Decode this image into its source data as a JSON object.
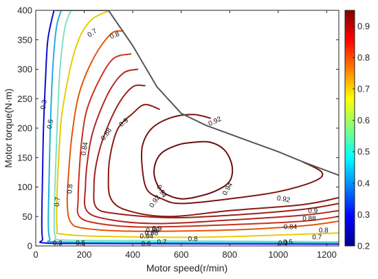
{
  "chart_data": {
    "type": "contour",
    "xlabel": "Motor speed(r/min)",
    "ylabel": "Motor torque(N·m)",
    "xlim": [
      0,
      1250
    ],
    "ylim": [
      0,
      400
    ],
    "x_ticks": [
      "0",
      "200",
      "400",
      "600",
      "800",
      "1000",
      "1200"
    ],
    "y_ticks": [
      "0",
      "50",
      "100",
      "150",
      "200",
      "250",
      "300",
      "350",
      "400"
    ],
    "colorbar": {
      "range": [
        0.2,
        0.95
      ],
      "ticks": [
        "0.2",
        "0.3",
        "0.4",
        "0.5",
        "0.6",
        "0.7",
        "0.8",
        "0.9"
      ],
      "colors": [
        "#00008f",
        "#0000ff",
        "#0080ff",
        "#00ffff",
        "#80ff80",
        "#ffff00",
        "#ff8000",
        "#ff0000",
        "#800000"
      ]
    },
    "grid": false,
    "boundary": {
      "name": "max torque envelope",
      "color": "#555555",
      "points": [
        [
          80,
          400
        ],
        [
          300,
          400
        ],
        [
          400,
          340
        ],
        [
          500,
          270
        ],
        [
          600,
          225
        ],
        [
          700,
          205
        ],
        [
          800,
          190
        ],
        [
          900,
          175
        ],
        [
          1000,
          160
        ],
        [
          1100,
          143
        ],
        [
          1250,
          120
        ]
      ]
    },
    "levels": [
      {
        "level": 0.3,
        "color": "#0a0ad2",
        "points": [
          [
            75,
            400
          ],
          [
            50,
            350
          ],
          [
            40,
            280
          ],
          [
            32,
            200
          ],
          [
            28,
            120
          ],
          [
            25,
            40
          ],
          [
            28,
            12
          ],
          [
            40,
            5
          ],
          [
            300,
            4
          ],
          [
            1250,
            3
          ]
        ],
        "labels": [
          {
            "text": "0.3",
            "x": 32,
            "y": 240,
            "angle": -80
          },
          {
            "text": "0.3",
            "x": 90,
            "y": 5,
            "angle": 0
          },
          {
            "text": "0.3",
            "x": 1020,
            "y": 5,
            "angle": 0
          }
        ]
      },
      {
        "level": 0.5,
        "color": "#1faee0",
        "points": [
          [
            105,
            400
          ],
          [
            85,
            370
          ],
          [
            70,
            300
          ],
          [
            60,
            200
          ],
          [
            55,
            110
          ],
          [
            52,
            40
          ],
          [
            58,
            12
          ],
          [
            80,
            7
          ],
          [
            400,
            6
          ],
          [
            1250,
            5
          ]
        ],
        "labels": [
          {
            "text": "0.5",
            "x": 58,
            "y": 207,
            "angle": -80
          },
          {
            "text": "0.5",
            "x": 185,
            "y": 5,
            "angle": 0
          },
          {
            "text": "0.5",
            "x": 1040,
            "y": 7,
            "angle": 0
          }
        ]
      },
      {
        "level": 0.6,
        "color": "#7fe0c8",
        "points": [
          [
            145,
            400
          ],
          [
            120,
            370
          ],
          [
            100,
            300
          ],
          [
            88,
            200
          ],
          [
            80,
            110
          ],
          [
            76,
            40
          ],
          [
            82,
            15
          ],
          [
            110,
            10
          ],
          [
            400,
            9
          ],
          [
            1250,
            7
          ]
        ],
        "labels": [
          {
            "text": "0.6",
            "x": 455,
            "y": 4,
            "angle": 0
          }
        ]
      },
      {
        "level": 0.7,
        "color": "#e8cc00",
        "points": [
          [
            305,
            400
          ],
          [
            220,
            380
          ],
          [
            160,
            330
          ],
          [
            110,
            230
          ],
          [
            95,
            150
          ],
          [
            88,
            90
          ],
          [
            88,
            30
          ],
          [
            110,
            20
          ],
          [
            300,
            16
          ],
          [
            700,
            15
          ],
          [
            1250,
            22
          ]
        ],
        "labels": [
          {
            "text": "0.7",
            "x": 232,
            "y": 362,
            "angle": -35
          },
          {
            "text": "0.7",
            "x": 88,
            "y": 75,
            "angle": -85
          },
          {
            "text": "0.7",
            "x": 520,
            "y": 7,
            "angle": 0
          },
          {
            "text": "0.7",
            "x": 1160,
            "y": 15,
            "angle": 0
          }
        ]
      },
      {
        "level": 0.8,
        "color": "#e8540a",
        "points": [
          [
            360,
            365
          ],
          [
            310,
            360
          ],
          [
            240,
            320
          ],
          [
            180,
            260
          ],
          [
            150,
            190
          ],
          [
            135,
            120
          ],
          [
            130,
            70
          ],
          [
            145,
            40
          ],
          [
            200,
            30
          ],
          [
            400,
            25
          ],
          [
            800,
            27
          ],
          [
            1100,
            34
          ],
          [
            1250,
            42
          ]
        ],
        "labels": [
          {
            "text": "0.8",
            "x": 325,
            "y": 358,
            "angle": -20
          },
          {
            "text": "0.8",
            "x": 140,
            "y": 97,
            "angle": -85
          },
          {
            "text": "0.8",
            "x": 648,
            "y": 12,
            "angle": 0
          },
          {
            "text": "0.8",
            "x": 1187,
            "y": 27,
            "angle": 0
          }
        ]
      },
      {
        "level": 0.84,
        "color": "#c9301c",
        "points": [
          [
            392,
            326
          ],
          [
            320,
            318
          ],
          [
            260,
            280
          ],
          [
            210,
            230
          ],
          [
            190,
            180
          ],
          [
            180,
            130
          ],
          [
            175,
            80
          ],
          [
            180,
            50
          ],
          [
            260,
            38
          ],
          [
            450,
            32
          ],
          [
            800,
            36
          ],
          [
            1100,
            42
          ],
          [
            1250,
            50
          ]
        ],
        "labels": [
          {
            "text": "0.84",
            "x": 200,
            "y": 165,
            "angle": -80
          },
          {
            "text": "0.84",
            "x": 457,
            "y": 17,
            "angle": 0
          },
          {
            "text": "0.84",
            "x": 1050,
            "y": 33,
            "angle": 0
          }
        ]
      },
      {
        "level": 0.86,
        "color": "#b02522",
        "points": [
          [
            420,
            300
          ],
          [
            360,
            293
          ],
          [
            300,
            260
          ],
          [
            240,
            200
          ],
          [
            215,
            150
          ],
          [
            205,
            100
          ],
          [
            210,
            60
          ],
          [
            300,
            45
          ],
          [
            500,
            38
          ],
          [
            800,
            44
          ],
          [
            1100,
            52
          ],
          [
            1250,
            60
          ]
        ],
        "labels": [
          {
            "text": "0.86",
            "x": 482,
            "y": 27,
            "angle": 0
          }
        ]
      },
      {
        "level": 0.88,
        "color": "#9b2018",
        "points": [
          [
            450,
            272
          ],
          [
            400,
            270
          ],
          [
            340,
            240
          ],
          [
            280,
            185
          ],
          [
            250,
            140
          ],
          [
            240,
            100
          ],
          [
            250,
            65
          ],
          [
            330,
            55
          ],
          [
            550,
            48
          ],
          [
            800,
            52
          ],
          [
            1100,
            62
          ],
          [
            1250,
            72
          ]
        ],
        "labels": [
          {
            "text": "0.88",
            "x": 290,
            "y": 190,
            "angle": -55
          },
          {
            "text": "0.88",
            "x": 477,
            "y": 22,
            "angle": 0
          },
          {
            "text": "0.88",
            "x": 1128,
            "y": 47,
            "angle": 0
          }
        ]
      },
      {
        "level": 0.9,
        "color": "#8a1a12",
        "points": [
          [
            510,
            232
          ],
          [
            450,
            240
          ],
          [
            400,
            225
          ],
          [
            340,
            200
          ],
          [
            310,
            160
          ],
          [
            300,
            120
          ],
          [
            310,
            80
          ],
          [
            380,
            60
          ],
          [
            550,
            50
          ],
          [
            800,
            60
          ],
          [
            1100,
            70
          ],
          [
            1250,
            82
          ]
        ],
        "labels": [
          {
            "text": "0.9",
            "x": 362,
            "y": 210,
            "angle": -40
          },
          {
            "text": "0.9",
            "x": 500,
            "y": 30,
            "angle": 0
          },
          {
            "text": "0.9",
            "x": 1143,
            "y": 60,
            "angle": 0
          }
        ]
      },
      {
        "level": 0.92,
        "color": "#7a1410",
        "points": [
          [
            720,
            217
          ],
          [
            650,
            223
          ],
          [
            560,
            218
          ],
          [
            480,
            200
          ],
          [
            440,
            170
          ],
          [
            440,
            130
          ],
          [
            460,
            95
          ],
          [
            520,
            80
          ],
          [
            600,
            72
          ],
          [
            800,
            80
          ],
          [
            1000,
            92
          ],
          [
            1150,
            110
          ],
          [
            1180,
            125
          ],
          [
            1100,
            143
          ]
        ],
        "labels": [
          {
            "text": "0.92",
            "x": 738,
            "y": 212,
            "angle": -25
          },
          {
            "text": "0.92",
            "x": 490,
            "y": 76,
            "angle": -55
          },
          {
            "text": "0.92",
            "x": 1022,
            "y": 80,
            "angle": 10
          }
        ]
      },
      {
        "level": 0.94,
        "color": "#6a0f0c",
        "points": [
          [
            650,
            176
          ],
          [
            590,
            172
          ],
          [
            520,
            158
          ],
          [
            490,
            135
          ],
          [
            495,
            110
          ],
          [
            530,
            90
          ],
          [
            600,
            80
          ],
          [
            680,
            85
          ],
          [
            750,
            95
          ],
          [
            800,
            110
          ],
          [
            810,
            135
          ],
          [
            780,
            162
          ],
          [
            720,
            176
          ],
          [
            650,
            176
          ]
        ],
        "labels": [
          {
            "text": "0.94",
            "x": 520,
            "y": 93,
            "angle": 60
          },
          {
            "text": "0.94",
            "x": 790,
            "y": 97,
            "angle": -60
          }
        ]
      }
    ]
  }
}
